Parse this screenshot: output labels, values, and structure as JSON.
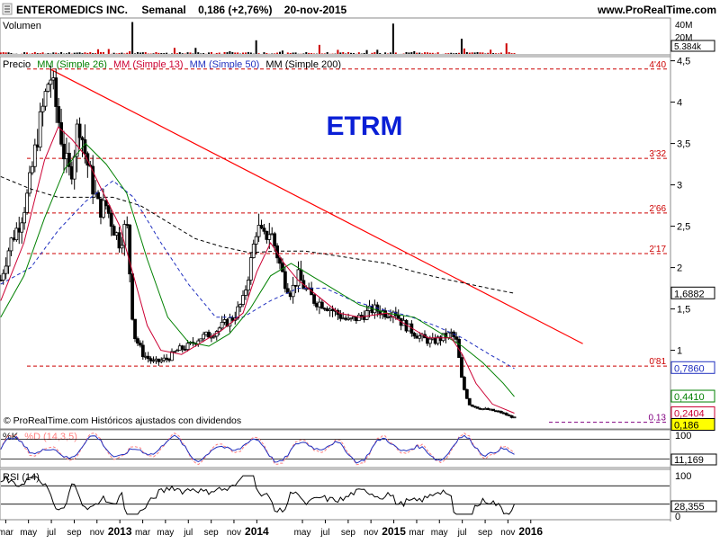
{
  "header": {
    "symbol": "ENTEROMEDICS INC.",
    "period": "Semanal",
    "quote": "0,186 (+2,76%)",
    "date": "20-nov-2015",
    "site": "www.ProRealTime.com"
  },
  "colors": {
    "candle": "#000000",
    "sma26": "#008000",
    "sma13": "#cc0033",
    "sma50": "#1f2fbf",
    "sma200": "#000000",
    "trendline": "#ff0000",
    "level": "#cc0000",
    "volume_up": "#cc0000",
    "volume_down": "#000000",
    "ticker_text": "#0a1fd6",
    "pk": "#1f2fbf",
    "pd": "#ff8080",
    "rsi": "#000000",
    "current_price_box": "#ffff00"
  },
  "chart_data": [
    {
      "type": "candlestick",
      "id": "price",
      "ticker": "ETRM",
      "title": "",
      "panel_label": "Precio",
      "legend": [
        "MM (Simple 26)",
        "MM (Simple 13)",
        "MM (Simple 50)",
        "MM (Simple 200)"
      ],
      "footnote": "© ProRealTime.com Históricos ajustados con dividendos",
      "ylim": [
        0.05,
        4.55
      ],
      "y_ticks": [
        {
          "v": 4.5,
          "t": "4,5"
        },
        {
          "v": 4,
          "t": "4"
        },
        {
          "v": 3.5,
          "t": "3,5"
        },
        {
          "v": 3,
          "t": "3"
        },
        {
          "v": 2.5,
          "t": "2,5"
        },
        {
          "v": 2,
          "t": "2"
        },
        {
          "v": 1.5,
          "t": "1,5"
        },
        {
          "v": 1,
          "t": "1"
        }
      ],
      "x_time_range": [
        2011.125,
        2016.02
      ],
      "x_ticks": [
        {
          "t": 2011.167,
          "label": "mar"
        },
        {
          "t": 2011.333,
          "label": "may"
        },
        {
          "t": 2011.5,
          "label": "jul"
        },
        {
          "t": 2011.667,
          "label": "sep"
        },
        {
          "t": 2011.833,
          "label": "nov"
        },
        {
          "t": 2012.0,
          "label": "2013",
          "bold": true
        },
        {
          "t": 2012.167,
          "label": "mar"
        },
        {
          "t": 2012.333,
          "label": "may"
        },
        {
          "t": 2012.5,
          "label": "jul"
        },
        {
          "t": 2012.667,
          "label": "sep"
        },
        {
          "t": 2012.833,
          "label": "nov"
        },
        {
          "t": 2013.0,
          "label": "2014",
          "bold": true
        },
        {
          "t": 2013.333,
          "label": "may"
        },
        {
          "t": 2013.5,
          "label": "jul"
        },
        {
          "t": 2013.667,
          "label": "sep"
        },
        {
          "t": 2013.833,
          "label": "nov"
        },
        {
          "t": 2014.0,
          "label": "2015",
          "bold": true
        },
        {
          "t": 2014.167,
          "label": "mar"
        },
        {
          "t": 2014.333,
          "label": "may"
        },
        {
          "t": 2014.5,
          "label": "jul"
        },
        {
          "t": 2014.667,
          "label": "sep"
        },
        {
          "t": 2014.833,
          "label": "nov"
        },
        {
          "t": 2015.0,
          "label": "2016",
          "bold": true
        }
      ],
      "levels": [
        {
          "value": 4.4,
          "label": "4'40"
        },
        {
          "value": 3.32,
          "label": "3'32"
        },
        {
          "value": 2.66,
          "label": "2'66"
        },
        {
          "value": 2.17,
          "label": "2'17"
        },
        {
          "value": 0.81,
          "label": "0'81"
        },
        {
          "value": 0.13,
          "label": "0.13",
          "color": "#800080"
        }
      ],
      "trendline": [
        {
          "t": 2011.49,
          "v": 4.4
        },
        {
          "t": 2015.38,
          "v": 1.08
        }
      ],
      "price_tags": [
        {
          "value": 1.6882,
          "label": "1,6882",
          "color": "#000000"
        },
        {
          "value": 0.786,
          "label": "0,7860",
          "color": "#1f2fbf"
        },
        {
          "value": 0.441,
          "label": "0,4410",
          "color": "#008000"
        },
        {
          "value": 0.2404,
          "label": "0,2404",
          "color": "#cc0033"
        },
        {
          "value": 0.186,
          "label": "0,186",
          "color": "#000000",
          "highlight": true
        }
      ],
      "close_series": [
        [
          2011.13,
          1.85
        ],
        [
          2011.2,
          2.3
        ],
        [
          2011.27,
          2.55
        ],
        [
          2011.33,
          2.9
        ],
        [
          2011.4,
          3.6
        ],
        [
          2011.46,
          4.1
        ],
        [
          2011.49,
          4.35
        ],
        [
          2011.55,
          3.8
        ],
        [
          2011.6,
          3.3
        ],
        [
          2011.64,
          3.1
        ],
        [
          2011.7,
          3.8
        ],
        [
          2011.75,
          3.35
        ],
        [
          2011.8,
          3.0
        ],
        [
          2011.85,
          2.7
        ],
        [
          2011.9,
          2.75
        ],
        [
          2011.95,
          2.5
        ],
        [
          2012.0,
          2.3
        ],
        [
          2012.05,
          2.55
        ],
        [
          2012.1,
          1.2
        ],
        [
          2012.17,
          0.95
        ],
        [
          2012.25,
          0.85
        ],
        [
          2012.35,
          0.9
        ],
        [
          2012.42,
          1.0
        ],
        [
          2012.5,
          1.05
        ],
        [
          2012.58,
          1.15
        ],
        [
          2012.67,
          1.2
        ],
        [
          2012.75,
          1.3
        ],
        [
          2012.83,
          1.4
        ],
        [
          2012.9,
          1.6
        ],
        [
          2012.96,
          2.1
        ],
        [
          2013.0,
          2.5
        ],
        [
          2013.05,
          2.35
        ],
        [
          2013.1,
          2.45
        ],
        [
          2013.15,
          2.15
        ],
        [
          2013.2,
          1.85
        ],
        [
          2013.25,
          1.7
        ],
        [
          2013.3,
          1.9
        ],
        [
          2013.35,
          1.75
        ],
        [
          2013.42,
          1.6
        ],
        [
          2013.5,
          1.55
        ],
        [
          2013.58,
          1.45
        ],
        [
          2013.67,
          1.35
        ],
        [
          2013.75,
          1.4
        ],
        [
          2013.85,
          1.5
        ],
        [
          2013.95,
          1.45
        ],
        [
          2014.0,
          1.5
        ],
        [
          2014.05,
          1.35
        ],
        [
          2014.12,
          1.25
        ],
        [
          2014.2,
          1.15
        ],
        [
          2014.28,
          1.1
        ],
        [
          2014.35,
          1.15
        ],
        [
          2014.42,
          1.2
        ],
        [
          2014.46,
          1.1
        ],
        [
          2014.5,
          0.6
        ],
        [
          2014.55,
          0.35
        ],
        [
          2014.62,
          0.3
        ],
        [
          2014.7,
          0.28
        ],
        [
          2014.78,
          0.25
        ],
        [
          2014.85,
          0.2
        ],
        [
          2014.88,
          0.186
        ]
      ],
      "sma13": [
        [
          2011.13,
          1.6
        ],
        [
          2011.3,
          2.3
        ],
        [
          2011.45,
          3.3
        ],
        [
          2011.55,
          3.7
        ],
        [
          2011.65,
          3.55
        ],
        [
          2011.75,
          3.35
        ],
        [
          2011.85,
          3.0
        ],
        [
          2012.0,
          2.5
        ],
        [
          2012.1,
          1.9
        ],
        [
          2012.2,
          1.3
        ],
        [
          2012.3,
          1.0
        ],
        [
          2012.45,
          0.95
        ],
        [
          2012.6,
          1.1
        ],
        [
          2012.75,
          1.25
        ],
        [
          2012.9,
          1.45
        ],
        [
          2013.0,
          1.95
        ],
        [
          2013.1,
          2.3
        ],
        [
          2013.2,
          2.05
        ],
        [
          2013.3,
          1.85
        ],
        [
          2013.45,
          1.65
        ],
        [
          2013.6,
          1.45
        ],
        [
          2013.75,
          1.4
        ],
        [
          2013.95,
          1.45
        ],
        [
          2014.1,
          1.3
        ],
        [
          2014.25,
          1.15
        ],
        [
          2014.42,
          1.15
        ],
        [
          2014.5,
          0.95
        ],
        [
          2014.6,
          0.6
        ],
        [
          2014.72,
          0.35
        ],
        [
          2014.88,
          0.24
        ]
      ],
      "sma26": [
        [
          2011.13,
          1.4
        ],
        [
          2011.3,
          1.9
        ],
        [
          2011.45,
          2.6
        ],
        [
          2011.6,
          3.2
        ],
        [
          2011.75,
          3.5
        ],
        [
          2011.9,
          3.25
        ],
        [
          2012.05,
          2.9
        ],
        [
          2012.2,
          2.1
        ],
        [
          2012.35,
          1.4
        ],
        [
          2012.5,
          1.1
        ],
        [
          2012.65,
          1.05
        ],
        [
          2012.8,
          1.2
        ],
        [
          2012.95,
          1.5
        ],
        [
          2013.1,
          1.9
        ],
        [
          2013.25,
          2.05
        ],
        [
          2013.4,
          1.9
        ],
        [
          2013.55,
          1.75
        ],
        [
          2013.75,
          1.55
        ],
        [
          2013.95,
          1.45
        ],
        [
          2014.15,
          1.4
        ],
        [
          2014.35,
          1.2
        ],
        [
          2014.5,
          1.05
        ],
        [
          2014.65,
          0.85
        ],
        [
          2014.8,
          0.6
        ],
        [
          2014.88,
          0.44
        ]
      ],
      "sma50": [
        [
          2011.13,
          1.8
        ],
        [
          2011.35,
          2.0
        ],
        [
          2011.55,
          2.45
        ],
        [
          2011.75,
          2.8
        ],
        [
          2011.95,
          3.05
        ],
        [
          2012.1,
          2.85
        ],
        [
          2012.3,
          2.3
        ],
        [
          2012.5,
          1.8
        ],
        [
          2012.7,
          1.4
        ],
        [
          2012.9,
          1.4
        ],
        [
          2013.1,
          1.6
        ],
        [
          2013.3,
          1.75
        ],
        [
          2013.5,
          1.75
        ],
        [
          2013.7,
          1.6
        ],
        [
          2013.9,
          1.5
        ],
        [
          2014.1,
          1.42
        ],
        [
          2014.3,
          1.3
        ],
        [
          2014.5,
          1.15
        ],
        [
          2014.7,
          0.95
        ],
        [
          2014.88,
          0.78
        ]
      ],
      "sma200": [
        [
          2011.13,
          3.1
        ],
        [
          2011.35,
          2.95
        ],
        [
          2011.55,
          2.85
        ],
        [
          2011.75,
          2.85
        ],
        [
          2011.95,
          2.85
        ],
        [
          2012.15,
          2.75
        ],
        [
          2012.35,
          2.55
        ],
        [
          2012.55,
          2.35
        ],
        [
          2012.75,
          2.25
        ],
        [
          2012.95,
          2.18
        ],
        [
          2013.15,
          2.2
        ],
        [
          2013.35,
          2.2
        ],
        [
          2013.55,
          2.15
        ],
        [
          2013.75,
          2.1
        ],
        [
          2013.95,
          2.05
        ],
        [
          2014.15,
          1.95
        ],
        [
          2014.35,
          1.87
        ],
        [
          2014.55,
          1.8
        ],
        [
          2014.75,
          1.73
        ],
        [
          2014.88,
          1.69
        ]
      ]
    },
    {
      "type": "bar",
      "id": "volume",
      "panel_label": "Volumen",
      "unit_ticks": [
        {
          "v": 40,
          "t": "40M"
        },
        {
          "v": 20,
          "t": "20M"
        }
      ],
      "last_value": "5.384k",
      "ylim": [
        0,
        45
      ],
      "spikes": [
        {
          "t": 2012.1,
          "v": 42,
          "dir": "down"
        },
        {
          "t": 2013.0,
          "v": 18,
          "dir": "down"
        },
        {
          "t": 2013.45,
          "v": 12,
          "dir": "up"
        },
        {
          "t": 2014.0,
          "v": 40,
          "dir": "down"
        },
        {
          "t": 2014.5,
          "v": 20,
          "dir": "down"
        },
        {
          "t": 2014.83,
          "v": 14,
          "dir": "up"
        }
      ]
    },
    {
      "type": "line",
      "id": "stochastic",
      "panel_label": "%K",
      "legend_d": "%D (14,3,5)",
      "ylim": [
        0,
        100
      ],
      "y_ticks": [
        {
          "v": 100,
          "t": "100"
        }
      ],
      "levels": [
        80,
        20
      ],
      "last_values": [
        {
          "v": 11.169,
          "t": "11,169"
        }
      ]
    },
    {
      "type": "line",
      "id": "rsi",
      "panel_label": "RSI (14)",
      "ylim": [
        0,
        100
      ],
      "y_ticks": [
        {
          "v": 100,
          "t": "100"
        },
        {
          "v": 0,
          "t": "0"
        }
      ],
      "levels": [
        70,
        30
      ],
      "last_values": [
        {
          "v": 28.355,
          "t": "28,355"
        }
      ]
    }
  ]
}
